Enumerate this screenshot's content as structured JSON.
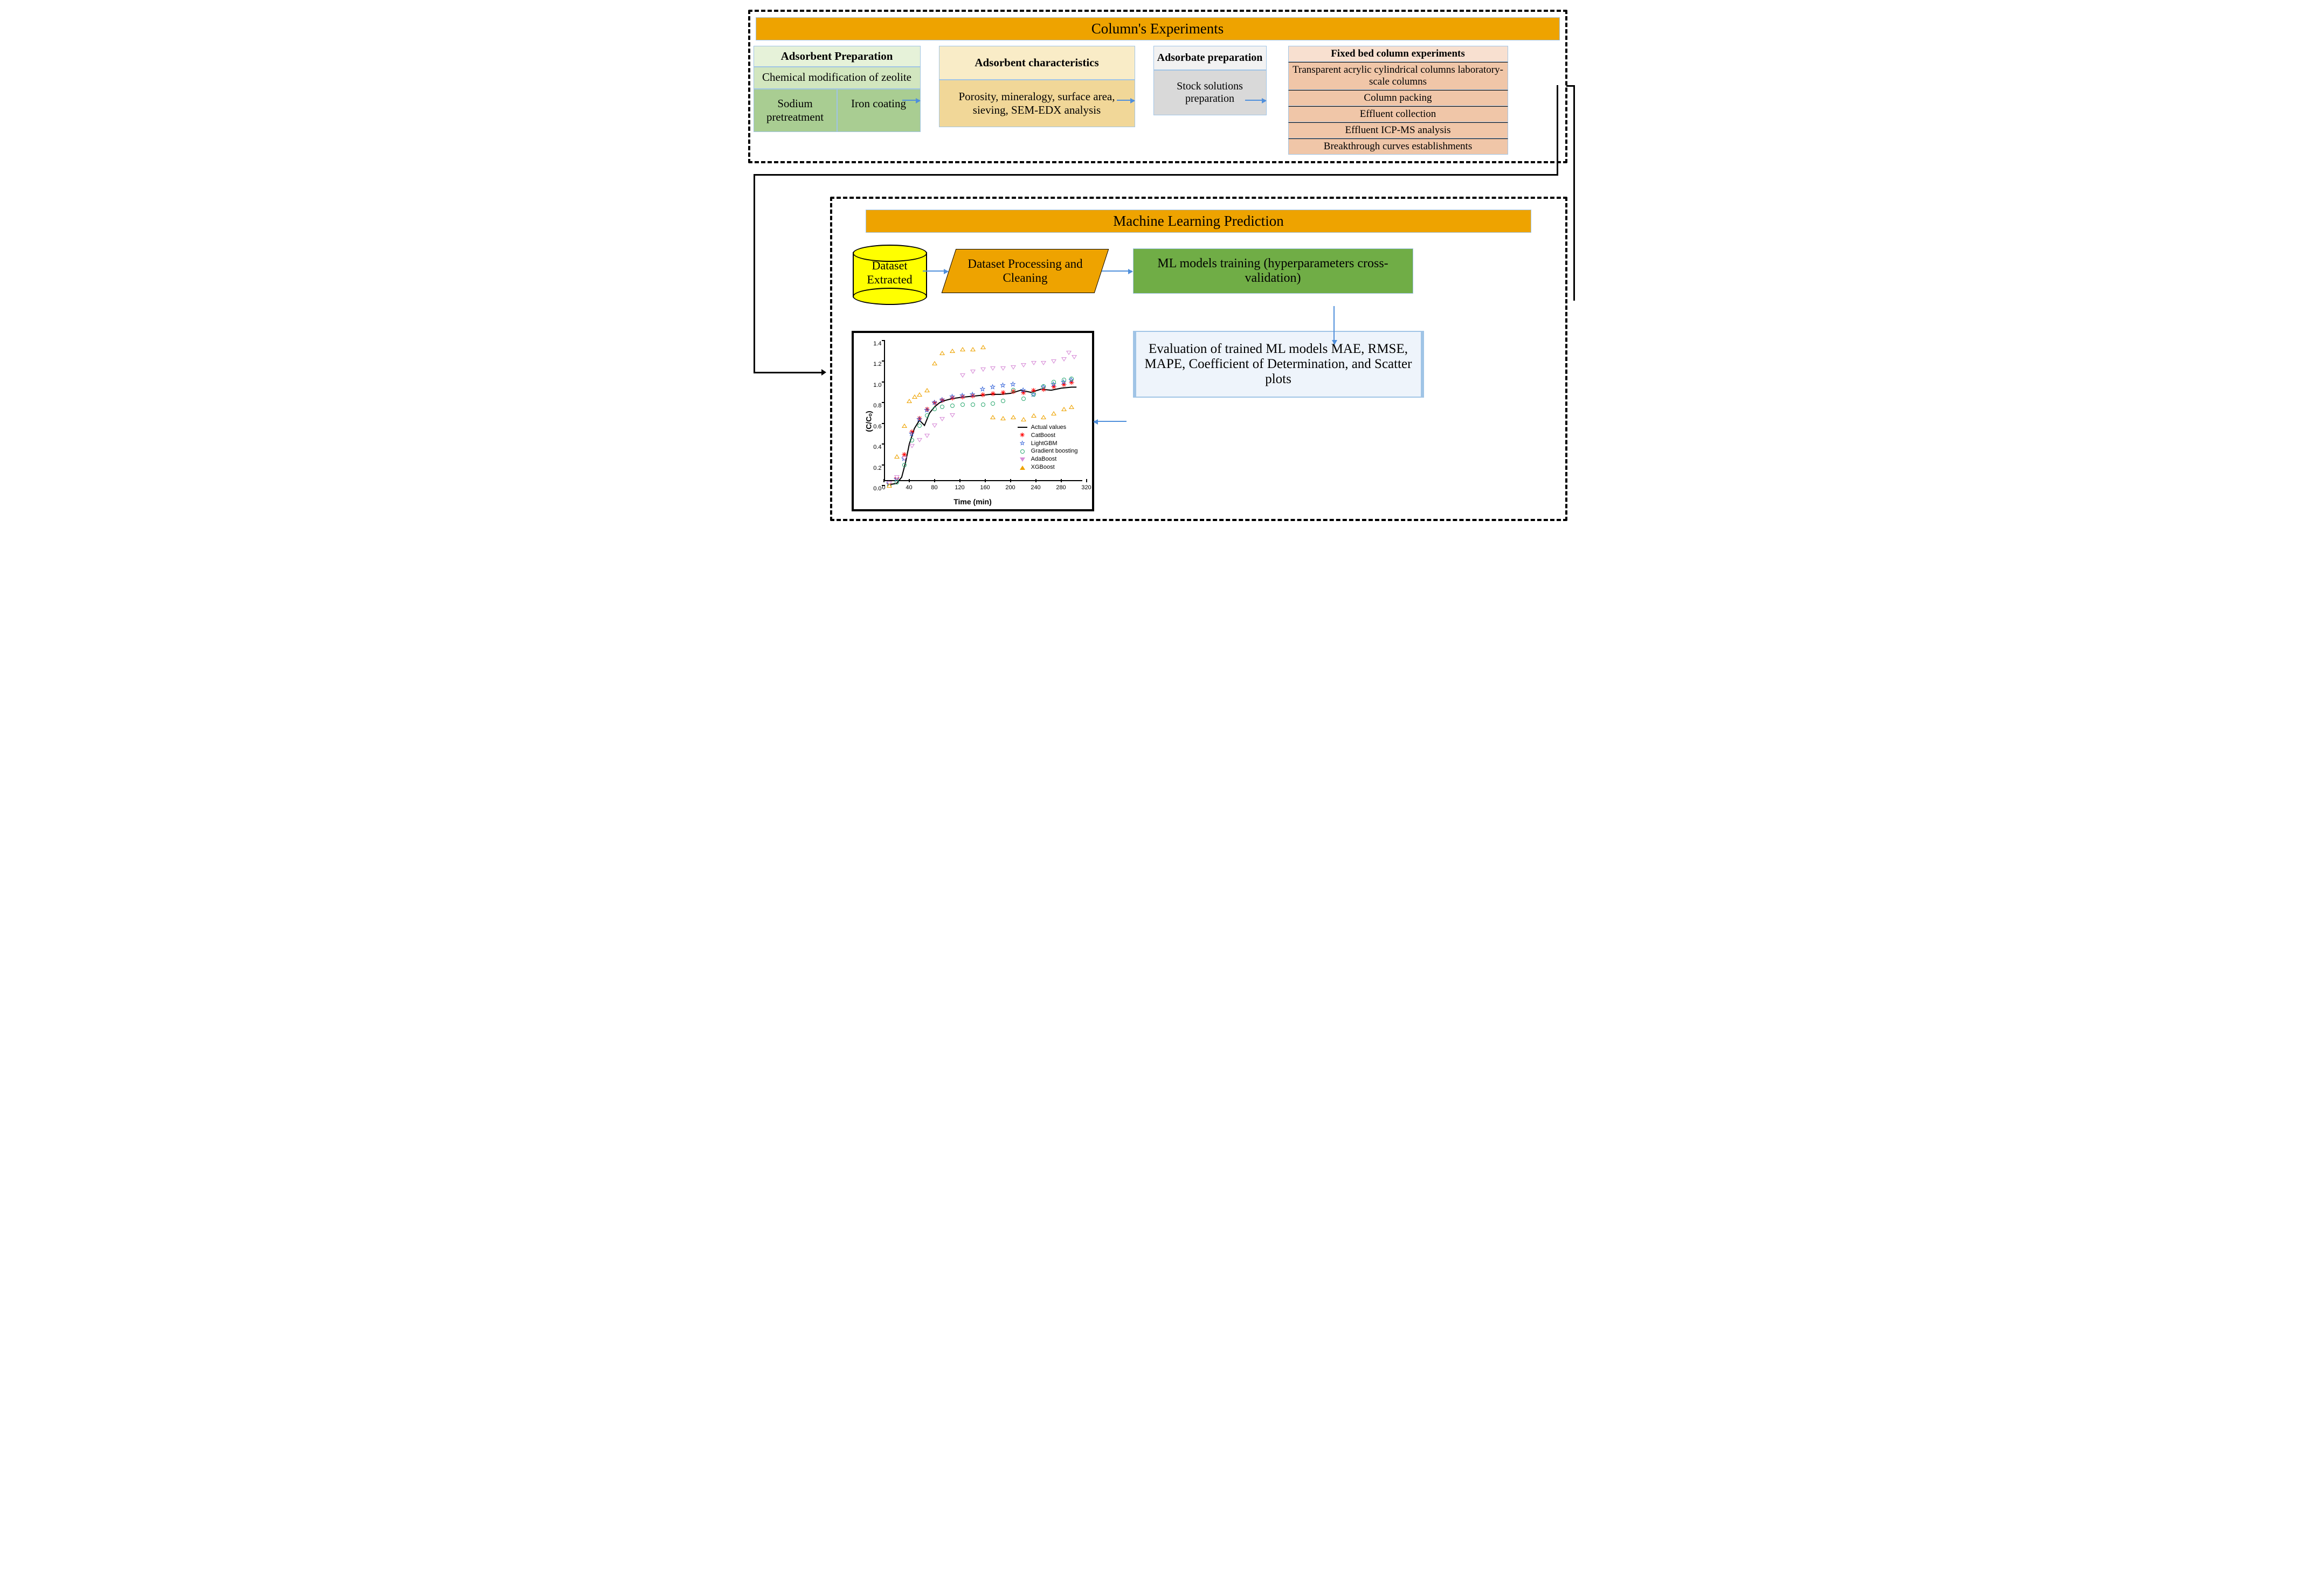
{
  "top": {
    "title": "Column's Experiments",
    "prep": {
      "header": "Adsorbent Preparation",
      "sub1": "Chemical modification of zeolite",
      "sub2a": "Sodium pretreatment",
      "sub2b": "Iron coating"
    },
    "char": {
      "header": "Adsorbent characteristics",
      "body": "Porosity, mineralogy, surface area, sieving, SEM-EDX analysis"
    },
    "adsorbate": {
      "header": "Adsorbate preparation",
      "body": "Stock solutions preparation"
    },
    "fixedbed": {
      "header": "Fixed bed column experiments",
      "rows": [
        "Transparent acrylic cylindrical columns laboratory-scale columns",
        "Column packing",
        "Effluent collection",
        "Effluent ICP-MS analysis",
        "Breakthrough curves establishments"
      ]
    }
  },
  "bottom": {
    "title": "Machine Learning Prediction",
    "dataset": "Dataset Extracted",
    "processing": "Dataset Processing and Cleaning",
    "training": "ML models training  (hyperparameters cross-validation)",
    "evaluation": "Evaluation of trained ML models MAE, RMSE, MAPE, Coefficient of Determination, and Scatter plots"
  },
  "colors": {
    "orange_bar": "#eea300",
    "green_h": "#e6f2d9",
    "green_m": "#d2e6bf",
    "green_d": "#a9cd92",
    "yellow_h": "#f9ecc7",
    "yellow_b": "#f1d798",
    "gray_h": "#f2f2f2",
    "gray_b": "#d9d9d9",
    "peach_h": "#f8e0d0",
    "peach_b": "#f0c6a8",
    "bright_yellow": "#ffff00",
    "ml_green": "#70ad46",
    "eval_bg": "#eef4fb",
    "arrow_blue": "#4f8fdb",
    "border_blue": "#a0c4e6",
    "black": "#000000",
    "white": "#ffffff"
  },
  "chart": {
    "type": "scatter+line",
    "xlabel": "Time (min)",
    "ylabel": "(C/Cₒ)",
    "xlim": [
      0,
      320
    ],
    "ylim": [
      0.0,
      1.4
    ],
    "xtick_step": 40,
    "ytick_step": 0.2,
    "background_color": "#ffffff",
    "title_fontsize": 14,
    "label_fontsize": 14,
    "tick_fontsize": 11,
    "font_family": "Arial",
    "line_width": 2,
    "marker_size": 8,
    "legend_position": "lower-right",
    "series": [
      {
        "name": "Actual values",
        "style": "line",
        "color": "#000000",
        "x": [
          10,
          20,
          28,
          34,
          40,
          48,
          56,
          64,
          72,
          80,
          88,
          96,
          108,
          120,
          136,
          152,
          168,
          184,
          200,
          216,
          232,
          248,
          264,
          280,
          296,
          304
        ],
        "y": [
          0.01,
          0.02,
          0.08,
          0.22,
          0.4,
          0.55,
          0.63,
          0.58,
          0.7,
          0.76,
          0.8,
          0.82,
          0.84,
          0.85,
          0.86,
          0.87,
          0.88,
          0.88,
          0.89,
          0.92,
          0.9,
          0.93,
          0.92,
          0.94,
          0.95,
          0.95
        ]
      },
      {
        "name": "CatBoost",
        "style": "marker",
        "marker": "asterisk",
        "color": "#ff0000",
        "x": [
          12,
          24,
          36,
          48,
          60,
          72,
          84,
          96,
          112,
          128,
          144,
          160,
          176,
          192,
          208,
          224,
          240,
          256,
          272,
          288,
          300
        ],
        "y": [
          0.02,
          0.08,
          0.3,
          0.52,
          0.65,
          0.74,
          0.8,
          0.83,
          0.85,
          0.86,
          0.87,
          0.88,
          0.89,
          0.9,
          0.91,
          0.9,
          0.92,
          0.93,
          0.96,
          0.98,
          1.0
        ]
      },
      {
        "name": "LightGBM",
        "style": "marker",
        "marker": "star",
        "color": "#2a5bd7",
        "x": [
          12,
          24,
          36,
          48,
          60,
          72,
          84,
          96,
          112,
          128,
          144,
          160,
          176,
          192,
          208,
          224,
          240,
          256,
          272,
          288,
          300
        ],
        "y": [
          0.02,
          0.06,
          0.26,
          0.5,
          0.64,
          0.73,
          0.8,
          0.83,
          0.86,
          0.87,
          0.88,
          0.93,
          0.95,
          0.97,
          0.98,
          0.92,
          0.88,
          0.95,
          0.98,
          1.0,
          1.02
        ]
      },
      {
        "name": "Gradient boosting",
        "style": "marker",
        "marker": "circle",
        "color": "#2aa86f",
        "x": [
          12,
          24,
          36,
          48,
          60,
          72,
          84,
          96,
          112,
          128,
          144,
          160,
          176,
          192,
          208,
          224,
          240,
          256,
          272,
          288,
          300
        ],
        "y": [
          0.02,
          0.05,
          0.22,
          0.46,
          0.6,
          0.7,
          0.76,
          0.78,
          0.79,
          0.8,
          0.8,
          0.8,
          0.81,
          0.84,
          0.94,
          0.86,
          0.9,
          0.98,
          1.02,
          1.04,
          1.05
        ]
      },
      {
        "name": "AdaBoost",
        "style": "marker",
        "marker": "triangle-down",
        "color": "#d88fd8",
        "x": [
          12,
          24,
          36,
          48,
          60,
          72,
          84,
          96,
          112,
          128,
          144,
          160,
          176,
          192,
          208,
          224,
          240,
          256,
          272,
          288,
          296,
          304
        ],
        "y": [
          0.04,
          0.1,
          0.28,
          0.4,
          0.46,
          0.5,
          0.6,
          0.66,
          0.7,
          1.08,
          1.12,
          1.14,
          1.15,
          1.15,
          1.16,
          1.18,
          1.2,
          1.2,
          1.22,
          1.24,
          1.3,
          1.26
        ]
      },
      {
        "name": "XGBoost",
        "style": "marker",
        "marker": "triangle-up",
        "color": "#eea300",
        "x": [
          12,
          24,
          36,
          44,
          52,
          60,
          72,
          84,
          96,
          112,
          128,
          144,
          160,
          176,
          192,
          208,
          224,
          240,
          256,
          272,
          288,
          300
        ],
        "y": [
          0.02,
          0.3,
          0.6,
          0.84,
          0.88,
          0.9,
          0.94,
          1.2,
          1.3,
          1.32,
          1.34,
          1.34,
          1.36,
          0.68,
          0.67,
          0.68,
          0.66,
          0.7,
          0.68,
          0.72,
          0.76,
          0.78
        ]
      }
    ]
  }
}
